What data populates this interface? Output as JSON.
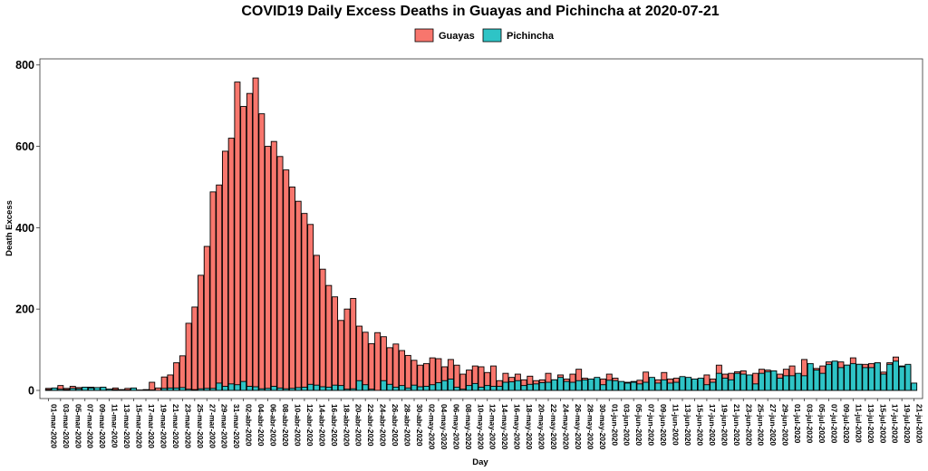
{
  "chart_data": {
    "type": "bar",
    "title": "COVID19 Daily Excess Deaths in Guayas and Pichincha at 2020-07-21",
    "xlabel": "Day",
    "ylabel": "Death Excess",
    "ylim": [
      -20,
      815
    ],
    "yticks": [
      0,
      200,
      400,
      600,
      800
    ],
    "legend_position": "top",
    "grid": false,
    "colors": {
      "Guayas": "#f8766d",
      "Pichincha": "#2ec4c6",
      "border": "#000000"
    },
    "categories": [
      "01-mar-2020",
      "02-mar-2020",
      "03-mar-2020",
      "04-mar-2020",
      "05-mar-2020",
      "06-mar-2020",
      "07-mar-2020",
      "08-mar-2020",
      "09-mar-2020",
      "10-mar-2020",
      "11-mar-2020",
      "12-mar-2020",
      "13-mar-2020",
      "14-mar-2020",
      "15-mar-2020",
      "16-mar-2020",
      "17-mar-2020",
      "18-mar-2020",
      "19-mar-2020",
      "20-mar-2020",
      "21-mar-2020",
      "22-mar-2020",
      "23-mar-2020",
      "24-mar-2020",
      "25-mar-2020",
      "26-mar-2020",
      "27-mar-2020",
      "28-mar-2020",
      "29-mar-2020",
      "30-mar-2020",
      "31-mar-2020",
      "01-abr-2020",
      "02-abr-2020",
      "03-abr-2020",
      "04-abr-2020",
      "05-abr-2020",
      "06-abr-2020",
      "07-abr-2020",
      "08-abr-2020",
      "09-abr-2020",
      "10-abr-2020",
      "11-abr-2020",
      "12-abr-2020",
      "13-abr-2020",
      "14-abr-2020",
      "15-abr-2020",
      "16-abr-2020",
      "17-abr-2020",
      "18-abr-2020",
      "19-abr-2020",
      "20-abr-2020",
      "21-abr-2020",
      "22-abr-2020",
      "23-abr-2020",
      "24-abr-2020",
      "25-abr-2020",
      "26-abr-2020",
      "27-abr-2020",
      "28-abr-2020",
      "29-abr-2020",
      "30-abr-2020",
      "01-may-2020",
      "02-may-2020",
      "03-may-2020",
      "04-may-2020",
      "05-may-2020",
      "06-may-2020",
      "07-may-2020",
      "08-may-2020",
      "09-may-2020",
      "10-may-2020",
      "11-may-2020",
      "12-may-2020",
      "13-may-2020",
      "14-may-2020",
      "15-may-2020",
      "16-may-2020",
      "17-may-2020",
      "18-may-2020",
      "19-may-2020",
      "20-may-2020",
      "21-may-2020",
      "22-may-2020",
      "23-may-2020",
      "24-may-2020",
      "25-may-2020",
      "26-may-2020",
      "27-may-2020",
      "28-may-2020",
      "29-may-2020",
      "30-may-2020",
      "31-may-2020",
      "01-jun-2020",
      "02-jun-2020",
      "03-jun-2020",
      "04-jun-2020",
      "05-jun-2020",
      "06-jun-2020",
      "07-jun-2020",
      "08-jun-2020",
      "09-jun-2020",
      "10-jun-2020",
      "11-jun-2020",
      "12-jun-2020",
      "13-jun-2020",
      "14-jun-2020",
      "15-jun-2020",
      "16-jun-2020",
      "17-jun-2020",
      "18-jun-2020",
      "19-jun-2020",
      "20-jun-2020",
      "21-jun-2020",
      "22-jun-2020",
      "23-jun-2020",
      "24-jun-2020",
      "25-jun-2020",
      "26-jun-2020",
      "27-jun-2020",
      "28-jun-2020",
      "29-jun-2020",
      "30-jun-2020",
      "01-jul-2020",
      "02-jul-2020",
      "03-jul-2020",
      "04-jul-2020",
      "05-jul-2020",
      "06-jul-2020",
      "07-jul-2020",
      "08-jul-2020",
      "09-jul-2020",
      "10-jul-2020",
      "11-jul-2020",
      "12-jul-2020",
      "13-jul-2020",
      "14-jul-2020",
      "15-jul-2020",
      "16-jul-2020",
      "17-jul-2020",
      "18-jul-2020",
      "19-jul-2020",
      "20-jul-2020",
      "21-jul-2020"
    ],
    "series": [
      {
        "name": "Guayas",
        "values": [
          5,
          3,
          12,
          5,
          10,
          7,
          5,
          8,
          5,
          6,
          3,
          6,
          2,
          5,
          2,
          1,
          2,
          20,
          6,
          33,
          38,
          68,
          85,
          165,
          205,
          283,
          354,
          488,
          505,
          588,
          620,
          758,
          698,
          730,
          768,
          680,
          600,
          612,
          575,
          542,
          500,
          465,
          435,
          408,
          332,
          298,
          258,
          230,
          172,
          200,
          226,
          158,
          143,
          115,
          142,
          132,
          105,
          114,
          98,
          86,
          74,
          62,
          66,
          80,
          78,
          58,
          76,
          62,
          40,
          50,
          60,
          58,
          44,
          60,
          24,
          42,
          32,
          40,
          26,
          35,
          24,
          26,
          42,
          26,
          38,
          28,
          40,
          52,
          30,
          28,
          20,
          28,
          40,
          30,
          20,
          20,
          22,
          25,
          45,
          30,
          26,
          44,
          28,
          30,
          22,
          25,
          18,
          22,
          38,
          28,
          62,
          40,
          42,
          46,
          48,
          20,
          42,
          52,
          50,
          28,
          40,
          52,
          60,
          40,
          76,
          56,
          54,
          60,
          70,
          58,
          70,
          62,
          80,
          64,
          64,
          66,
          68,
          45,
          68,
          82,
          60,
          60,
          0
        ]
      },
      {
        "name": "Pichincha",
        "values": [
          2,
          6,
          3,
          2,
          5,
          4,
          8,
          6,
          7,
          8,
          3,
          2,
          0,
          1,
          6,
          0,
          0,
          1,
          0,
          5,
          6,
          6,
          7,
          3,
          2,
          4,
          5,
          5,
          18,
          10,
          16,
          14,
          22,
          10,
          9,
          4,
          5,
          10,
          6,
          4,
          5,
          7,
          8,
          15,
          13,
          9,
          8,
          13,
          12,
          3,
          4,
          24,
          14,
          3,
          0,
          24,
          15,
          8,
          12,
          6,
          13,
          9,
          10,
          14,
          19,
          24,
          28,
          8,
          3,
          12,
          17,
          8,
          12,
          10,
          10,
          20,
          21,
          24,
          12,
          15,
          16,
          19,
          20,
          26,
          32,
          22,
          20,
          24,
          26,
          28,
          32,
          14,
          25,
          24,
          22,
          18,
          20,
          16,
          20,
          32,
          18,
          26,
          18,
          20,
          34,
          32,
          28,
          30,
          14,
          20,
          42,
          30,
          26,
          42,
          40,
          38,
          16,
          42,
          46,
          48,
          30,
          36,
          36,
          42,
          36,
          66,
          50,
          42,
          64,
          72,
          56,
          62,
          66,
          64,
          56,
          56,
          68,
          40,
          64,
          72,
          58,
          64,
          18
        ]
      }
    ]
  }
}
